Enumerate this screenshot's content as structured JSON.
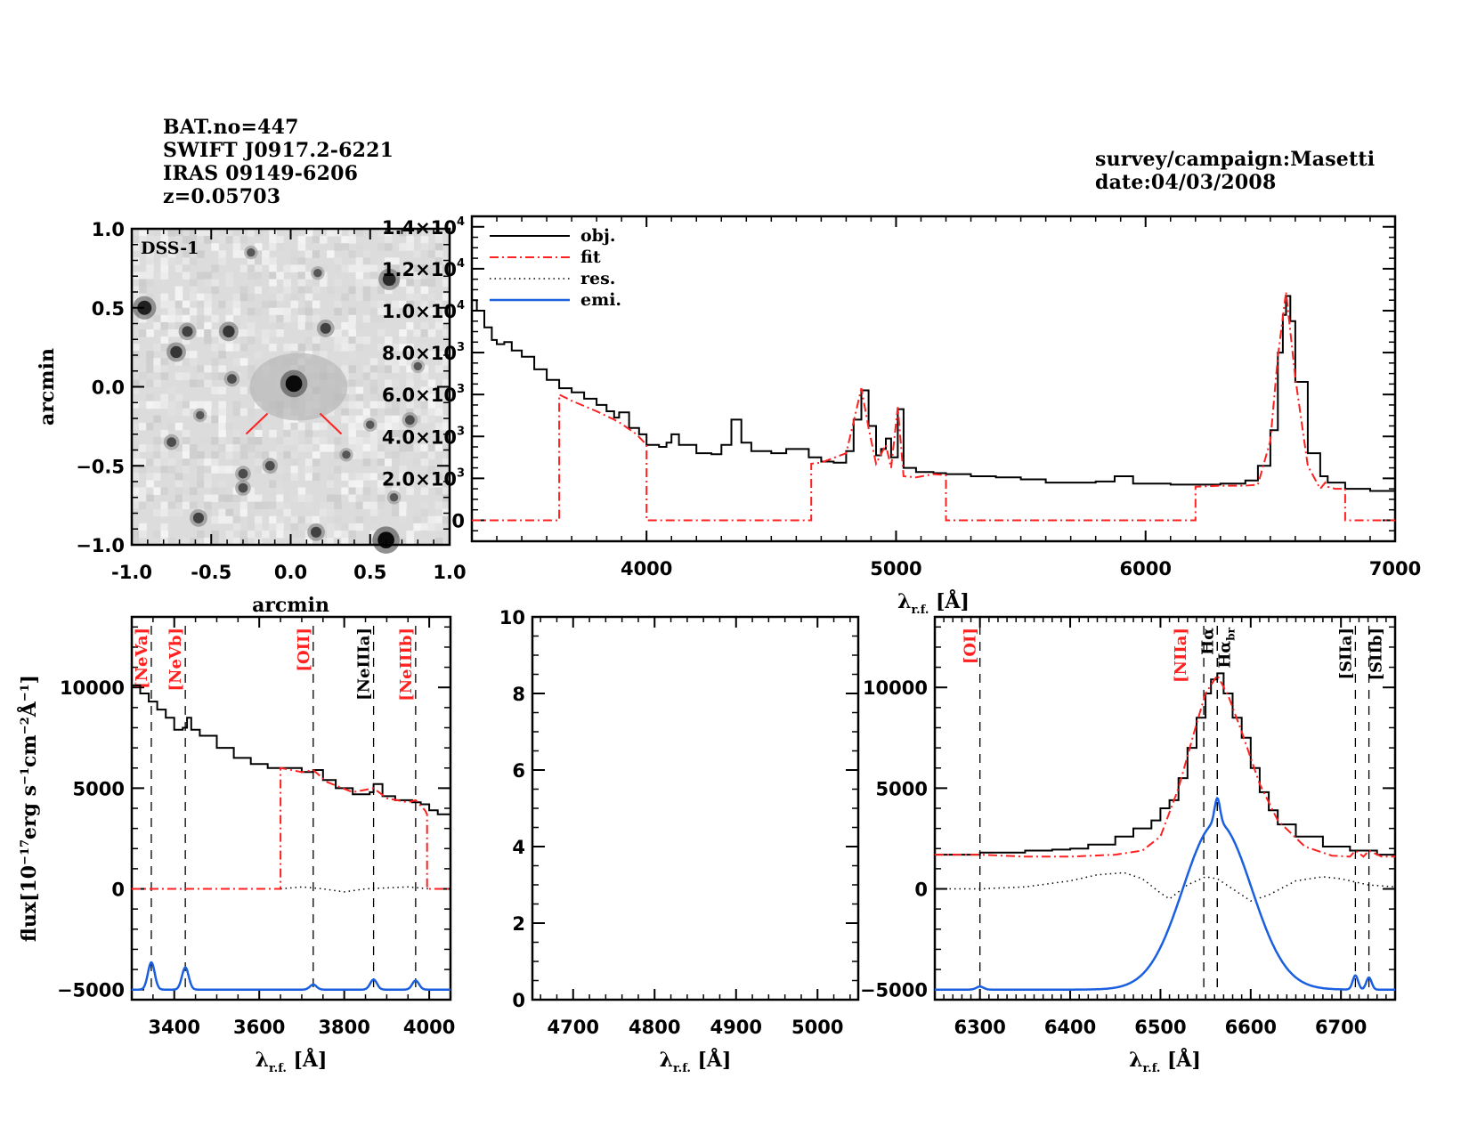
{
  "header": {
    "left_lines": [
      "BAT.no=447",
      "SWIFT J0917.2-6221",
      "IRAS 09149-6206",
      "z=0.05703"
    ],
    "right_lines": [
      "survey/campaign:Masetti",
      "date:04/03/2008"
    ]
  },
  "colors": {
    "obj": "#000000",
    "fit": "#ff2020",
    "res": "#000000",
    "emi": "#1a5fe0",
    "line_marker_red": "#ff2020",
    "line_marker_black": "#000000"
  },
  "chart_data": [
    {
      "id": "dss-image",
      "type": "heatmap",
      "title": "DSS-1",
      "xlabel": "arcmin",
      "ylabel": "arcmin",
      "xlim": [
        -1.0,
        1.0
      ],
      "ylim": [
        -1.0,
        1.0
      ],
      "xticks": [
        "-1.0",
        "-0.5",
        "0.0",
        "0.5",
        "1.0"
      ],
      "yticks": [
        "-1.0",
        "-0.5",
        "0.0",
        "0.5",
        "1.0"
      ],
      "xtick_values": [
        -1.0,
        -0.5,
        0.0,
        0.5,
        1.0
      ],
      "ytick_values": [
        -1.0,
        -0.5,
        0.0,
        0.5,
        1.0
      ],
      "target_position": [
        0.0,
        0.0
      ],
      "sources": [
        {
          "x": 0.02,
          "y": 0.02,
          "s": 1.0
        },
        {
          "x": 0.6,
          "y": -0.97,
          "s": 1.0
        },
        {
          "x": -0.92,
          "y": 0.5,
          "s": 0.8
        },
        {
          "x": 0.62,
          "y": 0.68,
          "s": 0.7
        },
        {
          "x": -0.72,
          "y": 0.22,
          "s": 0.6
        },
        {
          "x": -0.39,
          "y": 0.35,
          "s": 0.6
        },
        {
          "x": -0.65,
          "y": 0.35,
          "s": 0.5
        },
        {
          "x": 0.22,
          "y": 0.37,
          "s": 0.5
        },
        {
          "x": -0.58,
          "y": -0.83,
          "s": 0.5
        },
        {
          "x": 0.16,
          "y": -0.92,
          "s": 0.5
        },
        {
          "x": -0.37,
          "y": 0.05,
          "s": 0.4
        },
        {
          "x": -0.3,
          "y": -0.64,
          "s": 0.4
        },
        {
          "x": -0.13,
          "y": -0.5,
          "s": 0.4
        },
        {
          "x": 0.75,
          "y": -0.21,
          "s": 0.4
        },
        {
          "x": -0.3,
          "y": -0.55,
          "s": 0.4
        },
        {
          "x": 0.35,
          "y": -0.43,
          "s": 0.3
        },
        {
          "x": -0.75,
          "y": -0.35,
          "s": 0.4
        },
        {
          "x": 0.8,
          "y": 0.13,
          "s": 0.3
        },
        {
          "x": 0.5,
          "y": -0.24,
          "s": 0.3
        },
        {
          "x": -0.57,
          "y": -0.18,
          "s": 0.3
        },
        {
          "x": 0.65,
          "y": -0.7,
          "s": 0.3
        },
        {
          "x": 0.17,
          "y": 0.72,
          "s": 0.3
        },
        {
          "x": -0.25,
          "y": 0.85,
          "s": 0.3
        }
      ],
      "marker_color": "#ff2020"
    },
    {
      "id": "full-spectrum",
      "type": "line",
      "title": "",
      "xlabel": "λ r.f. [Å]",
      "ylabel": "",
      "xlim": [
        3300,
        7000
      ],
      "ylim": [
        -1000,
        14500
      ],
      "xticks": [
        "4000",
        "5000",
        "6000",
        "7000"
      ],
      "xtick_values": [
        4000,
        5000,
        6000,
        7000
      ],
      "yticks": [
        "0",
        "2.0×10³",
        "4.0×10³",
        "6.0×10³",
        "8.0×10³",
        "1.0×10⁴",
        "1.2×10⁴",
        "1.4×10⁴"
      ],
      "ytick_values": [
        0,
        2000,
        4000,
        6000,
        8000,
        10000,
        12000,
        14000
      ],
      "legend": {
        "placement": "top-left",
        "entries": [
          {
            "label": "obj.",
            "style": "solid",
            "color": "#000000"
          },
          {
            "label": "fit",
            "style": "dashdot",
            "color": "#ff2020"
          },
          {
            "label": "res.",
            "style": "dotted",
            "color": "#000000"
          },
          {
            "label": "emi.",
            "style": "solid",
            "color": "#1a5fe0"
          }
        ]
      },
      "series": [
        {
          "name": "obj.",
          "x": [
            3300,
            3320,
            3350,
            3380,
            3400,
            3430,
            3460,
            3500,
            3550,
            3600,
            3650,
            3700,
            3750,
            3800,
            3840,
            3870,
            3890,
            3930,
            3970,
            4000,
            4050,
            4080,
            4100,
            4130,
            4200,
            4260,
            4300,
            4340,
            4380,
            4420,
            4500,
            4560,
            4650,
            4700,
            4750,
            4800,
            4830,
            4861,
            4890,
            4920,
            4940,
            4959,
            4980,
            5007,
            5030,
            5080,
            5150,
            5200,
            5300,
            5400,
            5500,
            5600,
            5700,
            5800,
            5876,
            5950,
            6000,
            6100,
            6200,
            6300,
            6400,
            6450,
            6500,
            6530,
            6550,
            6563,
            6580,
            6600,
            6650,
            6700,
            6730,
            6760,
            6800,
            6900,
            7000
          ],
          "values": [
            10500,
            10000,
            9200,
            8600,
            8400,
            8500,
            8100,
            7800,
            7200,
            6700,
            6300,
            6100,
            5800,
            5500,
            5200,
            4900,
            5150,
            4400,
            4100,
            3600,
            3500,
            3700,
            4100,
            3600,
            3200,
            3150,
            3600,
            4800,
            3700,
            3300,
            3200,
            3400,
            3000,
            2800,
            2750,
            3300,
            4800,
            6200,
            4500,
            3100,
            3400,
            3900,
            3000,
            5300,
            2500,
            2300,
            2250,
            2200,
            2100,
            2050,
            1950,
            1800,
            1800,
            1850,
            2100,
            1750,
            1750,
            1700,
            1700,
            1750,
            1900,
            2600,
            4300,
            8000,
            9800,
            10700,
            9500,
            6600,
            3200,
            2100,
            1800,
            1800,
            1500,
            1400,
            1500
          ]
        },
        {
          "name": "fit",
          "x": [
            3300,
            3650,
            3650,
            3700,
            3800,
            3870,
            3900,
            3960,
            4000,
            4000,
            4660,
            4660,
            4700,
            4800,
            4830,
            4861,
            4890,
            4920,
            4959,
            4980,
            5007,
            5030,
            5080,
            5150,
            5200,
            5200,
            6200,
            6200,
            6300,
            6400,
            6450,
            6500,
            6530,
            6563,
            6600,
            6650,
            6700,
            6720,
            6730,
            6760,
            6800,
            6800,
            7000
          ],
          "values": [
            0,
            0,
            6000,
            5700,
            5200,
            4800,
            4600,
            4100,
            3600,
            0,
            0,
            2700,
            2750,
            3200,
            4700,
            6300,
            4400,
            2700,
            3600,
            2500,
            5400,
            2100,
            2050,
            2200,
            2150,
            0,
            0,
            1600,
            1650,
            1650,
            1700,
            3800,
            7800,
            10900,
            6800,
            2600,
            1500,
            1800,
            1600,
            1500,
            1500,
            0,
            0
          ]
        }
      ]
    },
    {
      "id": "zoom-neon",
      "type": "line",
      "xlabel": "λ r.f. [Å]",
      "ylabel": "flux[10⁻¹⁷erg s⁻¹cm⁻²Å⁻¹]",
      "xlim": [
        3300,
        4050
      ],
      "ylim": [
        -5500,
        13500
      ],
      "xticks": [
        "3400",
        "3600",
        "3800",
        "4000"
      ],
      "xtick_values": [
        3400,
        3600,
        3800,
        4000
      ],
      "yticks": [
        "-5000",
        "0",
        "5000",
        "10000"
      ],
      "ytick_values": [
        -5000,
        0,
        5000,
        10000
      ],
      "lines": [
        {
          "label": "[NeVa]",
          "x": 3346,
          "color": "#ff2020"
        },
        {
          "label": "[NeVb]",
          "x": 3426,
          "color": "#ff2020"
        },
        {
          "label": "[OII]",
          "x": 3727,
          "color": "#ff2020"
        },
        {
          "label": "[NeIIIa]",
          "x": 3869,
          "color": "#000000"
        },
        {
          "label": "[NeIIIb]",
          "x": 3968,
          "color": "#ff2020"
        }
      ],
      "series": [
        {
          "name": "obj.",
          "x": [
            3300,
            3320,
            3340,
            3360,
            3380,
            3400,
            3420,
            3430,
            3440,
            3460,
            3500,
            3540,
            3580,
            3620,
            3660,
            3700,
            3727,
            3750,
            3780,
            3820,
            3860,
            3869,
            3890,
            3920,
            3960,
            3980,
            4000,
            4020,
            4050
          ],
          "values": [
            10100,
            9700,
            9300,
            8900,
            8500,
            7900,
            8000,
            8500,
            7900,
            7600,
            7000,
            6500,
            6200,
            6000,
            6000,
            5800,
            5900,
            5400,
            5000,
            4700,
            4800,
            5200,
            4600,
            4400,
            4300,
            4200,
            3900,
            3700,
            3700
          ]
        },
        {
          "name": "fit",
          "x": [
            3300,
            3650,
            3650,
            3700,
            3727,
            3760,
            3820,
            3869,
            3900,
            3950,
            3968,
            3990,
            3995,
            3995,
            4050
          ],
          "values": [
            0,
            0,
            6000,
            5800,
            5900,
            5300,
            4800,
            5000,
            4500,
            4300,
            4400,
            3900,
            3700,
            0,
            0
          ]
        },
        {
          "name": "res.",
          "x": [
            3650,
            3700,
            3750,
            3800,
            3850,
            3900,
            3950,
            4000
          ],
          "values": [
            0,
            100,
            0,
            -150,
            0,
            50,
            100,
            0
          ]
        },
        {
          "name": "emi.",
          "offset": -5000,
          "peaks": [
            {
              "center": 3346,
              "amp": 1350,
              "sigma": 8
            },
            {
              "center": 3426,
              "amp": 1100,
              "sigma": 8
            },
            {
              "center": 3727,
              "amp": 250,
              "sigma": 8
            },
            {
              "center": 3869,
              "amp": 500,
              "sigma": 8
            },
            {
              "center": 3968,
              "amp": 450,
              "sigma": 8
            }
          ]
        }
      ]
    },
    {
      "id": "zoom-hbeta",
      "type": "line",
      "xlabel": "λ r.f. [Å]",
      "ylabel": "",
      "xlim": [
        4650,
        5050
      ],
      "ylim": [
        0,
        10
      ],
      "xticks": [
        "4700",
        "4800",
        "4900",
        "5000"
      ],
      "xtick_values": [
        4700,
        4800,
        4900,
        5000
      ],
      "yticks": [
        "0",
        "2",
        "4",
        "6",
        "8",
        "10"
      ],
      "ytick_values": [
        0,
        2,
        4,
        6,
        8,
        10
      ],
      "series": []
    },
    {
      "id": "zoom-halpha",
      "type": "line",
      "xlabel": "λ r.f. [Å]",
      "ylabel": "",
      "xlim": [
        6250,
        6760
      ],
      "ylim": [
        -5500,
        13500
      ],
      "xticks": [
        "6300",
        "6400",
        "6500",
        "6600",
        "6700"
      ],
      "xtick_values": [
        6300,
        6400,
        6500,
        6600,
        6700
      ],
      "yticks": [
        "-5000",
        "0",
        "5000",
        "10000"
      ],
      "ytick_values": [
        -5000,
        0,
        5000,
        10000
      ],
      "lines": [
        {
          "label": "[OI]",
          "x": 6300,
          "color": "#ff2020"
        },
        {
          "label": "[NIIa]",
          "x": 6548,
          "color": "#ff2020"
        },
        {
          "label": "Hα",
          "x": 6563,
          "color": "#000000"
        },
        {
          "label": "Hα_br",
          "x": 6563,
          "color": "#000000"
        },
        {
          "label": "[SIIa]",
          "x": 6716,
          "color": "#000000"
        },
        {
          "label": "[SIIb]",
          "x": 6731,
          "color": "#000000"
        }
      ],
      "series": [
        {
          "name": "obj.",
          "x": [
            6250,
            6300,
            6350,
            6380,
            6400,
            6420,
            6450,
            6470,
            6490,
            6500,
            6510,
            6520,
            6530,
            6540,
            6550,
            6556,
            6563,
            6570,
            6580,
            6590,
            6600,
            6610,
            6620,
            6630,
            6650,
            6680,
            6710,
            6740,
            6760
          ],
          "values": [
            1700,
            1800,
            1900,
            1950,
            2000,
            2200,
            2600,
            3000,
            3400,
            4000,
            4400,
            5500,
            7000,
            8500,
            9700,
            10400,
            10700,
            9700,
            8500,
            7500,
            6000,
            4800,
            3900,
            3200,
            2600,
            2100,
            1900,
            1700,
            1600
          ]
        },
        {
          "name": "fit",
          "x": [
            6250,
            6300,
            6350,
            6400,
            6450,
            6480,
            6500,
            6520,
            6540,
            6550,
            6563,
            6575,
            6590,
            6610,
            6630,
            6660,
            6690,
            6710,
            6716,
            6725,
            6731,
            6745,
            6760
          ],
          "values": [
            1700,
            1700,
            1600,
            1600,
            1700,
            1900,
            2600,
            5000,
            8200,
            9700,
            10600,
            9600,
            7800,
            5200,
            3400,
            2100,
            1650,
            1600,
            1900,
            1600,
            1900,
            1600,
            1600
          ]
        },
        {
          "name": "res.",
          "x": [
            6250,
            6300,
            6350,
            6400,
            6430,
            6460,
            6480,
            6500,
            6510,
            6530,
            6550,
            6563,
            6580,
            6600,
            6620,
            6650,
            6680,
            6700,
            6730,
            6760
          ],
          "values": [
            0,
            0,
            100,
            400,
            700,
            800,
            500,
            -200,
            -500,
            200,
            600,
            500,
            0,
            -600,
            -300,
            400,
            600,
            500,
            200,
            100
          ]
        },
        {
          "name": "emi.",
          "offset": -5000,
          "peaks": [
            {
              "center": 6300,
              "amp": 150,
              "sigma": 4
            },
            {
              "center": 6563,
              "amp": 8300,
              "sigma": 38
            },
            {
              "center": 6563,
              "amp": 1200,
              "sigma": 3
            },
            {
              "center": 6716,
              "amp": 700,
              "sigma": 3
            },
            {
              "center": 6731,
              "amp": 600,
              "sigma": 3
            }
          ]
        }
      ]
    }
  ]
}
